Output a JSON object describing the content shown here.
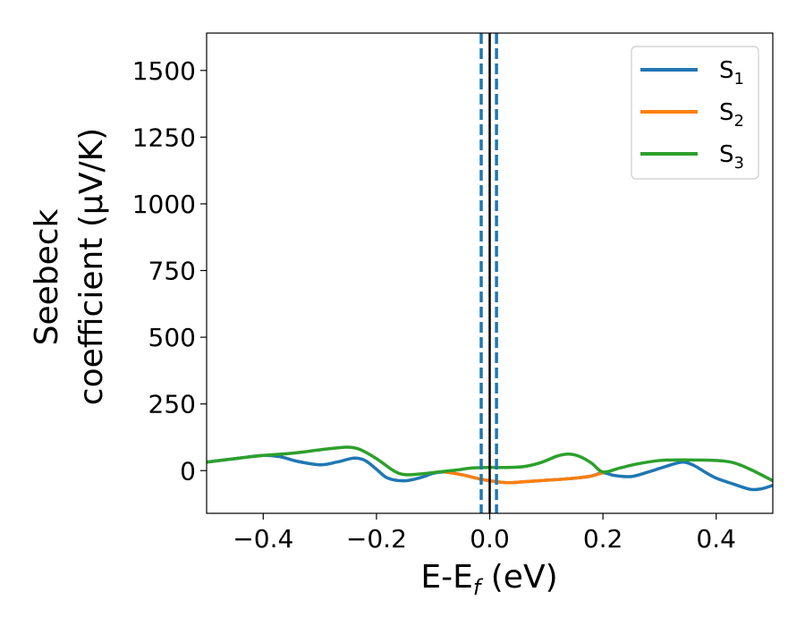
{
  "chart_data": {
    "type": "line",
    "title": "",
    "xlabel": "E-E",
    "xlabel_sub": "f",
    "xlabel_unit": " (eV)",
    "ylabel_line1": "Seebeck",
    "ylabel_line2": "coefficient  (μV/K)",
    "xlim": [
      -0.5,
      0.5
    ],
    "ylim": [
      -160,
      1640
    ],
    "x_ticks": [
      -0.4,
      -0.2,
      0.0,
      0.2,
      0.4
    ],
    "x_tick_labels": [
      "−0.4",
      "−0.2",
      "0.0",
      "0.2",
      "0.4"
    ],
    "y_ticks": [
      0,
      250,
      500,
      750,
      1000,
      1250,
      1500
    ],
    "y_tick_labels": [
      "0",
      "250",
      "500",
      "750",
      "1000",
      "1250",
      "1500"
    ],
    "grid": false,
    "legend_position": "top-right",
    "vlines": [
      {
        "x": -0.015,
        "style": "dashed",
        "color": "#1f77b4"
      },
      {
        "x": 0.0,
        "style": "solid",
        "color": "#000000"
      },
      {
        "x": 0.012,
        "style": "dashed",
        "color": "#1f77b4"
      }
    ],
    "series": [
      {
        "name": "S",
        "sub": "1",
        "color": "#1f77b4",
        "x": [
          -0.5,
          -0.45,
          -0.4,
          -0.37,
          -0.34,
          -0.3,
          -0.27,
          -0.24,
          -0.22,
          -0.2,
          -0.18,
          -0.15,
          -0.12,
          -0.1,
          -0.08,
          -0.05,
          -0.02,
          0.0,
          0.03,
          0.06,
          0.1,
          0.13,
          0.16,
          0.18,
          0.2,
          0.22,
          0.25,
          0.28,
          0.31,
          0.34,
          0.36,
          0.38,
          0.4,
          0.43,
          0.46,
          0.48,
          0.5
        ],
        "y": [
          32,
          45,
          57,
          52,
          35,
          22,
          32,
          47,
          38,
          5,
          -28,
          -38,
          -25,
          -10,
          -5,
          -15,
          -30,
          -38,
          -45,
          -42,
          -36,
          -32,
          -26,
          -20,
          -8,
          -18,
          -22,
          -5,
          15,
          32,
          20,
          -5,
          -28,
          -50,
          -70,
          -68,
          -55
        ]
      },
      {
        "name": "S",
        "sub": "2",
        "color": "#ff7f0e",
        "x": [
          -0.08,
          -0.05,
          -0.02,
          0.0,
          0.03,
          0.06,
          0.1,
          0.13,
          0.16,
          0.18,
          0.2
        ],
        "y": [
          -5,
          -15,
          -30,
          -38,
          -45,
          -42,
          -36,
          -32,
          -26,
          -20,
          -8
        ]
      },
      {
        "name": "S",
        "sub": "3",
        "color": "#2ca02c",
        "x": [
          -0.5,
          -0.45,
          -0.4,
          -0.35,
          -0.3,
          -0.27,
          -0.25,
          -0.23,
          -0.2,
          -0.17,
          -0.15,
          -0.12,
          -0.09,
          -0.06,
          -0.03,
          0.0,
          0.03,
          0.06,
          0.09,
          0.12,
          0.14,
          0.16,
          0.18,
          0.2,
          0.23,
          0.26,
          0.3,
          0.33,
          0.36,
          0.4,
          0.43,
          0.46,
          0.5
        ],
        "y": [
          32,
          45,
          57,
          65,
          78,
          85,
          88,
          80,
          45,
          0,
          -15,
          -12,
          -5,
          2,
          10,
          12,
          12,
          15,
          30,
          55,
          62,
          52,
          28,
          -5,
          10,
          25,
          38,
          40,
          40,
          38,
          30,
          5,
          -38
        ]
      }
    ]
  }
}
